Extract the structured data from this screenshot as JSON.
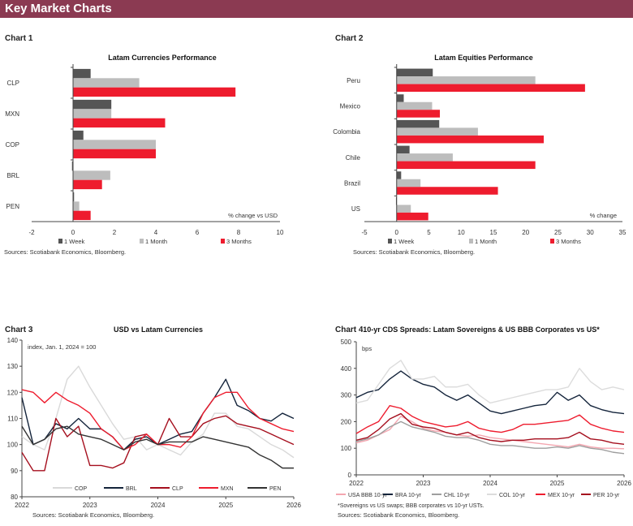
{
  "header": {
    "title": "Key Market Charts"
  },
  "labels": [
    "Chart 1",
    "Chart 2",
    "Chart 3",
    "Chart 4"
  ],
  "colors": {
    "header": "#8b3a52",
    "week": "#555555",
    "month": "#bdbdbd",
    "months3": "#ee1c2e"
  },
  "chart_data": [
    {
      "type": "bar",
      "orientation": "horizontal",
      "title": "Latam Currencies Performance",
      "unit_label": "% change  vs USD",
      "categories": [
        "CLP",
        "MXN",
        "COP",
        "BRL",
        "PEN"
      ],
      "series": [
        {
          "name": "1 Week",
          "color": "#555555",
          "values": [
            0.85,
            1.85,
            0.5,
            -0.05,
            0.05
          ]
        },
        {
          "name": "1 Month",
          "color": "#bdbdbd",
          "values": [
            3.2,
            1.85,
            4.0,
            1.8,
            0.3
          ]
        },
        {
          "name": "3 Months",
          "color": "#ee1c2e",
          "values": [
            7.85,
            4.45,
            4.0,
            1.4,
            0.85
          ]
        }
      ],
      "xlim": [
        -2,
        10
      ],
      "ticks": [
        "-2",
        "0",
        "2",
        "4",
        "6",
        "8",
        "10"
      ],
      "legend": "bottom",
      "source": "Sources:  Scotiabank  Economics,  Bloomberg."
    },
    {
      "type": "bar",
      "orientation": "horizontal",
      "title": "Latam Equities Performance",
      "unit_label": "% change",
      "categories": [
        "Peru",
        "Mexico",
        "Colombia",
        "Chile",
        "Brazil",
        "US"
      ],
      "series": [
        {
          "name": "1 Week",
          "color": "#555555",
          "values": [
            5.6,
            1.1,
            6.6,
            2.0,
            0.7,
            -0.1
          ]
        },
        {
          "name": "1 Month",
          "color": "#bdbdbd",
          "values": [
            21.5,
            5.5,
            12.6,
            8.7,
            3.7,
            2.2
          ]
        },
        {
          "name": "3 Months",
          "color": "#ee1c2e",
          "values": [
            29.2,
            6.7,
            22.8,
            21.5,
            15.7,
            4.9
          ]
        }
      ],
      "xlim": [
        -5,
        35
      ],
      "ticks": [
        "-5",
        "0",
        "5",
        "10",
        "15",
        "20",
        "25",
        "30",
        "35"
      ],
      "legend": "bottom",
      "source": "Sources:  Scotiabank  Economics,  Bloomberg."
    },
    {
      "type": "line",
      "title": "USD vs Latam Currencies",
      "unit_label": "index,  Jan. 1, 2024 = 100",
      "x": [
        "2022-01",
        "2022-03",
        "2022-05",
        "2022-07",
        "2022-09",
        "2022-11",
        "2023-01",
        "2023-03",
        "2023-05",
        "2023-07",
        "2023-09",
        "2023-11",
        "2024-01",
        "2024-03",
        "2024-05",
        "2024-07",
        "2024-09",
        "2024-11",
        "2025-01",
        "2025-03",
        "2025-05",
        "2025-07",
        "2025-09",
        "2025-11",
        "2026-01"
      ],
      "xticks": [
        "2022",
        "2023",
        "2024",
        "2025",
        "2026"
      ],
      "ylim": [
        80,
        140
      ],
      "yticks": [
        "80",
        "90",
        "100",
        "110",
        "120",
        "130",
        "140"
      ],
      "series": [
        {
          "name": "COP",
          "color": "#d9d9d9",
          "values": [
            103,
            100,
            98,
            110,
            125,
            130,
            122,
            115,
            108,
            102,
            103,
            98,
            100,
            98,
            96,
            101,
            104,
            112,
            112,
            107,
            106,
            103,
            100,
            98,
            95
          ]
        },
        {
          "name": "BRL",
          "color": "#14243b",
          "values": [
            118,
            100,
            102,
            108,
            106,
            110,
            106,
            106,
            103,
            98,
            102,
            103,
            100,
            102,
            104,
            105,
            112,
            118,
            125,
            115,
            113,
            110,
            109,
            112,
            110
          ]
        },
        {
          "name": "CLP",
          "color": "#a50f1e",
          "values": [
            97,
            90,
            90,
            110,
            103,
            107,
            92,
            92,
            91,
            93,
            103,
            104,
            100,
            110,
            103,
            103,
            108,
            110,
            111,
            108,
            107,
            106,
            104,
            102,
            100
          ]
        },
        {
          "name": "MXN",
          "color": "#ee1c2e",
          "values": [
            121,
            120,
            116,
            120,
            117,
            115,
            112,
            106,
            103,
            98,
            100,
            104,
            100,
            100,
            99,
            103,
            112,
            118,
            120,
            120,
            114,
            110,
            108,
            106,
            105
          ]
        },
        {
          "name": "PEN",
          "color": "#333333",
          "values": [
            107,
            100,
            102,
            106,
            107,
            104,
            103,
            102,
            100,
            98,
            101,
            102,
            100,
            101,
            101,
            101,
            103,
            102,
            101,
            100,
            99,
            96,
            94,
            91,
            91
          ]
        }
      ],
      "legend": "bottom",
      "source": "Sources:  Scotiabank  Economics,  Bloomberg."
    },
    {
      "type": "line",
      "title": "10-yr CDS Spreads: Latam Sovereigns & US BBB Corporates vs US*",
      "unit_label": "bps",
      "x": [
        "2022-01",
        "2022-03",
        "2022-05",
        "2022-07",
        "2022-09",
        "2022-11",
        "2023-01",
        "2023-03",
        "2023-05",
        "2023-07",
        "2023-09",
        "2023-11",
        "2024-01",
        "2024-03",
        "2024-05",
        "2024-07",
        "2024-09",
        "2024-11",
        "2025-01",
        "2025-03",
        "2025-05",
        "2025-07",
        "2025-09",
        "2025-11",
        "2026-01"
      ],
      "xticks": [
        "2022",
        "2023",
        "2024",
        "2025",
        "2026"
      ],
      "ylim": [
        0,
        500
      ],
      "yticks": [
        "0",
        "100",
        "200",
        "300",
        "400",
        "500"
      ],
      "series": [
        {
          "name": "USA BBB 10-yr",
          "color": "#f4a6b0",
          "values": [
            120,
            130,
            150,
            170,
            220,
            200,
            175,
            165,
            160,
            150,
            145,
            150,
            140,
            135,
            130,
            125,
            120,
            115,
            110,
            105,
            115,
            105,
            100,
            100,
            98
          ]
        },
        {
          "name": "BRA 10-yr",
          "color": "#14243b",
          "values": [
            290,
            310,
            320,
            360,
            390,
            360,
            340,
            330,
            300,
            280,
            300,
            270,
            240,
            230,
            240,
            250,
            260,
            265,
            310,
            280,
            300,
            260,
            245,
            235,
            230
          ]
        },
        {
          "name": "CHL 10-yr",
          "color": "#9e9e9e",
          "values": [
            125,
            135,
            150,
            180,
            200,
            180,
            170,
            160,
            145,
            140,
            140,
            130,
            115,
            110,
            110,
            105,
            100,
            100,
            105,
            100,
            110,
            100,
            95,
            85,
            80
          ]
        },
        {
          "name": "COL 10-yr",
          "color": "#dcdcdc",
          "values": [
            270,
            280,
            340,
            400,
            430,
            360,
            360,
            370,
            330,
            330,
            340,
            300,
            270,
            280,
            290,
            300,
            310,
            320,
            320,
            330,
            400,
            350,
            320,
            330,
            320
          ]
        },
        {
          "name": "MEX 10-yr",
          "color": "#ee1c2e",
          "values": [
            155,
            180,
            200,
            260,
            250,
            220,
            200,
            190,
            180,
            185,
            200,
            175,
            165,
            160,
            170,
            190,
            190,
            195,
            200,
            205,
            225,
            190,
            175,
            165,
            160
          ]
        },
        {
          "name": "PER 10-yr",
          "color": "#a50f1e",
          "values": [
            130,
            140,
            170,
            210,
            230,
            190,
            180,
            175,
            160,
            150,
            160,
            140,
            130,
            125,
            130,
            130,
            135,
            135,
            135,
            140,
            160,
            135,
            130,
            120,
            115
          ]
        }
      ],
      "legend": "bottom",
      "footnote": "*Sovereigns vs US swaps;  BBB corporates   vs 10-yr USTs.",
      "source": "Sources:  Scotiabank  Economics,  Bloomberg."
    }
  ]
}
